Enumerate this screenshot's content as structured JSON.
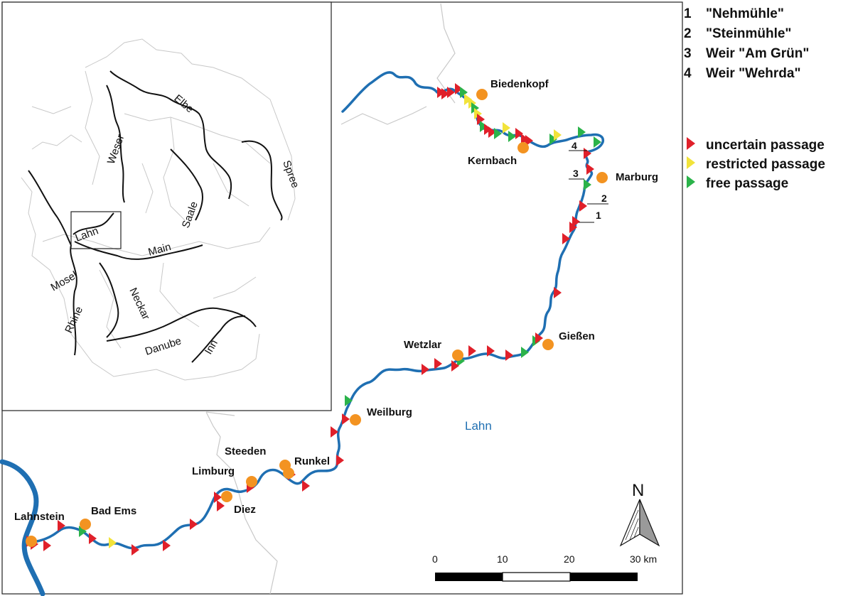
{
  "colors": {
    "river": "#1f6fb2",
    "town": "#f39321",
    "uncertain": "#e0202a",
    "restricted": "#f2e33a",
    "free": "#2bb34a",
    "border": "#c8c8c8"
  },
  "weirs_legend": [
    {
      "num": "1",
      "label": "\"Nehmühle\""
    },
    {
      "num": "2",
      "label": "\"Steinmühle\""
    },
    {
      "num": "3",
      "label": "Weir \"Am Grün\""
    },
    {
      "num": "4",
      "label": "Weir \"Wehrda\""
    }
  ],
  "passage_legend": [
    {
      "label": "uncertain passage",
      "color": "#e0202a"
    },
    {
      "label": "restricted passage",
      "color": "#f2e33a"
    },
    {
      "label": "free passage",
      "color": "#2bb34a"
    }
  ],
  "towns": [
    "Biedenkopf",
    "Kernbach",
    "Marburg",
    "Gießen",
    "Wetzlar",
    "Weilburg",
    "Runkel",
    "Steeden",
    "Limburg",
    "Diez",
    "Bad Ems",
    "Lahnstein"
  ],
  "river_name": "Lahn",
  "inset_rivers": [
    "Elbe",
    "Weser",
    "Spree",
    "Saale",
    "Lahn",
    "Main",
    "Mosel",
    "Rhine",
    "Neckar",
    "Danube",
    "Inn"
  ],
  "weir_labels": [
    "4",
    "3",
    "2",
    "1"
  ],
  "scale": {
    "ticks": [
      "0",
      "10",
      "20",
      "30 km"
    ]
  },
  "north_label": "N"
}
